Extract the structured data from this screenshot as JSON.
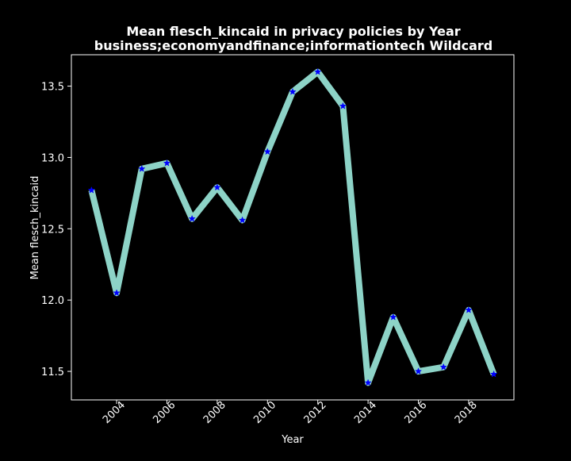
{
  "chart_data": {
    "type": "line",
    "title": "Mean flesch_kincaid in privacy policies by Year",
    "subtitle": "business;economyandfinance;informationtech Wildcard",
    "xlabel": "Year",
    "ylabel": "Mean flesch_kincaid",
    "x": [
      2003,
      2004,
      2005,
      2006,
      2007,
      2008,
      2009,
      2010,
      2011,
      2012,
      2013,
      2014,
      2015,
      2016,
      2017,
      2018,
      2019
    ],
    "series": [
      {
        "values": [
          12.77,
          12.05,
          12.92,
          12.96,
          12.57,
          12.79,
          12.56,
          13.04,
          13.46,
          13.6,
          13.36,
          11.42,
          11.88,
          11.5,
          11.53,
          11.93,
          11.48
        ]
      }
    ],
    "xlim": [
      2002.2,
      2019.8
    ],
    "ylim": [
      11.3,
      13.72
    ],
    "xticks": [
      2004,
      2006,
      2008,
      2010,
      2012,
      2014,
      2016,
      2018
    ],
    "xtick_labels": [
      "2004",
      "2006",
      "2008",
      "2010",
      "2012",
      "2014",
      "2016",
      "2018"
    ],
    "yticks": [
      11.5,
      12.0,
      12.5,
      13.0,
      13.5
    ],
    "ytick_labels": [
      "11.5",
      "12.0",
      "12.5",
      "13.0",
      "13.5"
    ],
    "grid": false,
    "colors": {
      "background": "#000000",
      "line": "#8dd3c7",
      "marker": "#0000ff",
      "axes": "#ffffff",
      "text": "#ffffff"
    },
    "marker": "star"
  }
}
